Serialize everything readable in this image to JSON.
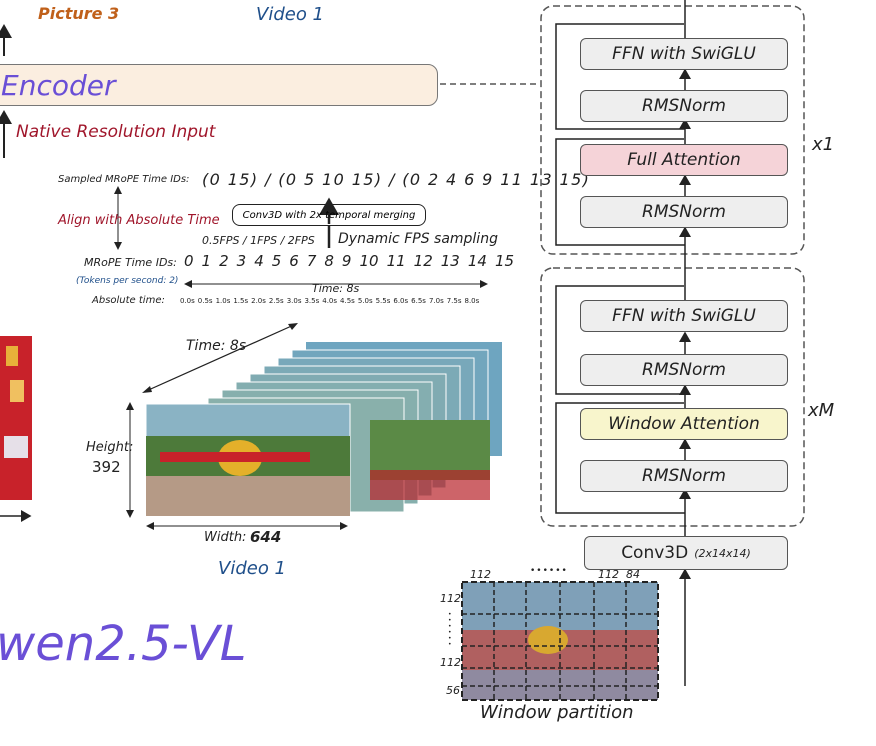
{
  "top_labels": {
    "picture": "Picture 3",
    "video": "Video 1"
  },
  "encoder": {
    "label": "Encoder",
    "input_label": "Native Resolution Input"
  },
  "timeline": {
    "sampled_label": "Sampled MRoPE Time IDs:",
    "sampled_ids": "(0 15) / (0 5 10 15) / (0 2 4 6 9 11 13 15)",
    "align_label": "Align with Absolute Time",
    "conv_label": "Conv3D with 2x temporal merging",
    "fps_options": "0.5FPS / 1FPS / 2FPS",
    "fps_label": "Dynamic FPS sampling",
    "mrope_label": "MRoPE Time IDs:",
    "mrope_ids": [
      "0",
      "1",
      "2",
      "3",
      "4",
      "5",
      "6",
      "7",
      "8",
      "9",
      "10",
      "11",
      "12",
      "13",
      "14",
      "15"
    ],
    "tokens_note": "(Tokens per second: 2)",
    "time_span": "Time: 8s",
    "abs_label": "Absolute time:",
    "abs_times": [
      "0.0s",
      "0.5s",
      "1.0s",
      "1.5s",
      "2.0s",
      "2.5s",
      "3.0s",
      "3.5s",
      "4.0s",
      "4.5s",
      "5.0s",
      "5.5s",
      "6.0s",
      "6.5s",
      "7.0s",
      "7.5s",
      "8.0s"
    ]
  },
  "video": {
    "time_label": "Time: 8s",
    "height_label": "Height:",
    "height_value": "392",
    "width_label": "Width:",
    "width_value": "644",
    "caption": "Video 1"
  },
  "model_title": "wen2.5-VL",
  "blocks": {
    "upper": [
      "FFN with SwiGLU",
      "RMSNorm",
      "Full Attention",
      "RMSNorm"
    ],
    "upper_repeat": "x1",
    "lower": [
      "FFN with SwiGLU",
      "RMSNorm",
      "Window Attention",
      "RMSNorm"
    ],
    "lower_repeat": "xM",
    "conv": "Conv3D",
    "conv_kernel": "(2x14x14)"
  },
  "partition": {
    "top_left": "112",
    "dots_h": "••••••",
    "top_mid": "112",
    "top_right": "84",
    "left_top": "112",
    "left_mid": "112",
    "left_bottom": "56",
    "caption": "Window partition"
  },
  "colors": {
    "encoder_bg": "#fbeee0",
    "full_attention": "#f5d3d8",
    "window_attention": "#f8f5cc",
    "title_purple": "#6a4fd6",
    "dark_red": "#a0162b",
    "blue_text": "#1f4f8a",
    "orange": "#c0601a"
  }
}
